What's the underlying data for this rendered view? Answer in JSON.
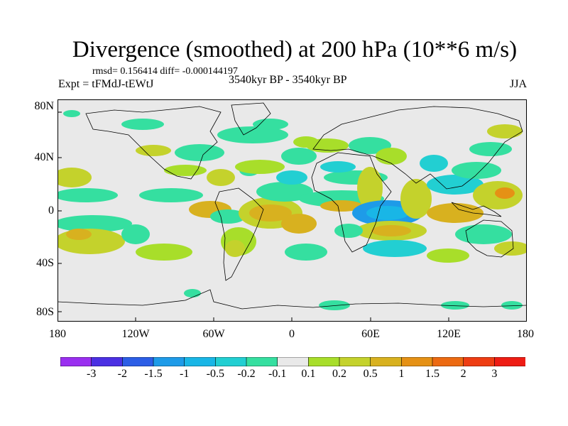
{
  "title": "Divergence (smoothed) at 200 hPa (10**6 m/s)",
  "stats": "rmsd= 0.156414 diff= -0.000144197",
  "experiment": "Expt = tFMdJ-tEWtJ",
  "period": "3540kyr BP - 3540kyr BP",
  "season": "JJA",
  "lat_labels": [
    "80N",
    "40N",
    "0",
    "40S",
    "80S"
  ],
  "lon_labels": [
    "180",
    "120W",
    "60W",
    "0",
    "60E",
    "120E",
    "180"
  ],
  "colorbar": {
    "labels": [
      "-3",
      "-2",
      "-1.5",
      "-1",
      "-0.5",
      "-0.2",
      "-0.1",
      "0.1",
      "0.2",
      "0.5",
      "1",
      "1.5",
      "2",
      "3"
    ],
    "colors": [
      "#9a2ff0",
      "#4b30e3",
      "#2c5ee6",
      "#1e9be8",
      "#19b6e6",
      "#22cfd2",
      "#35dfa0",
      "#e9e9e9",
      "#a8de2a",
      "#c4d22c",
      "#d8b11f",
      "#e59115",
      "#ec6a12",
      "#ee3d13",
      "#ee1c14"
    ]
  },
  "map_colors": {
    "ocean": "#e9e9e9",
    "coast": "#000000"
  }
}
